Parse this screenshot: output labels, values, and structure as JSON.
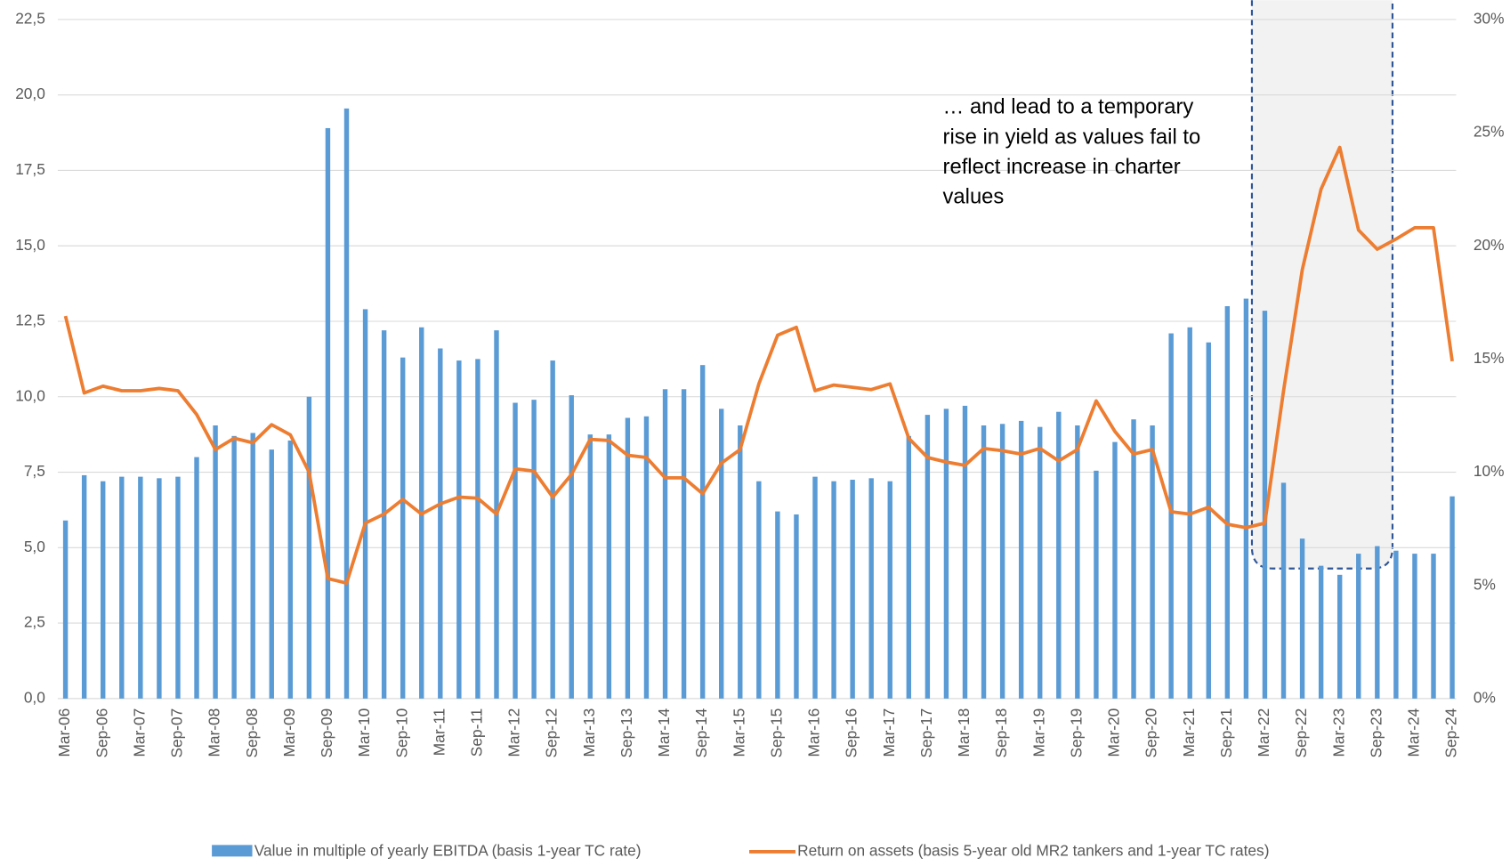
{
  "chart_data": {
    "type": "bar_line",
    "categories": [
      "Mar-06",
      null,
      "Sep-06",
      null,
      "Mar-07",
      null,
      "Sep-07",
      null,
      "Mar-08",
      null,
      "Sep-08",
      null,
      "Mar-09",
      null,
      "Sep-09",
      null,
      "Mar-10",
      null,
      "Sep-10",
      null,
      "Mar-11",
      null,
      "Sep-11",
      null,
      "Mar-12",
      null,
      "Sep-12",
      null,
      "Mar-13",
      null,
      "Sep-13",
      null,
      "Mar-14",
      null,
      "Sep-14",
      null,
      "Mar-15",
      null,
      "Sep-15",
      null,
      "Mar-16",
      null,
      "Sep-16",
      null,
      "Mar-17",
      null,
      "Sep-17",
      null,
      "Mar-18",
      null,
      "Sep-18",
      null,
      "Mar-19",
      null,
      "Sep-19",
      null,
      "Mar-20",
      null,
      "Sep-20",
      null,
      "Mar-21",
      null,
      "Sep-21",
      null,
      "Mar-22",
      null,
      "Sep-22",
      null,
      "Mar-23",
      null,
      "Sep-23",
      null,
      "Mar-24",
      null,
      "Sep-24"
    ],
    "series": [
      {
        "name": "Value in multiple of yearly EBITDA (basis 1-year TC rate)",
        "type": "bar",
        "color": "#5b9bd5",
        "values": [
          5.9,
          7.4,
          7.2,
          7.35,
          7.35,
          7.3,
          7.35,
          8.0,
          9.05,
          8.7,
          8.8,
          8.25,
          8.55,
          10.0,
          18.9,
          19.55,
          12.9,
          12.2,
          11.3,
          12.3,
          11.6,
          11.2,
          11.25,
          12.2,
          9.8,
          9.9,
          11.2,
          10.05,
          8.75,
          8.75,
          9.3,
          9.35,
          10.25,
          10.25,
          11.05,
          9.6,
          9.05,
          7.2,
          6.2,
          6.1,
          7.35,
          7.2,
          7.25,
          7.3,
          7.2,
          8.7,
          9.4,
          9.6,
          9.7,
          9.05,
          9.1,
          9.2,
          9.0,
          9.5,
          9.05,
          7.55,
          8.5,
          9.25,
          9.05,
          12.1,
          12.3,
          11.8,
          13.0,
          13.25,
          12.85,
          7.15,
          5.3,
          4.4,
          4.1,
          4.8,
          5.05,
          4.9,
          4.8,
          4.8,
          6.7
        ]
      },
      {
        "name": "Return on assets (basis 5-year old MR2 tankers and 1-year TC rates)",
        "type": "line",
        "axis": "y2",
        "color": "#ed7d31",
        "values": [
          16.9,
          13.5,
          13.8,
          13.6,
          13.6,
          13.7,
          13.6,
          12.55,
          11.0,
          11.5,
          11.3,
          12.1,
          11.65,
          10.0,
          5.3,
          5.1,
          7.75,
          8.15,
          8.8,
          8.15,
          8.6,
          8.9,
          8.85,
          8.15,
          10.15,
          10.05,
          8.9,
          9.9,
          11.45,
          11.4,
          10.75,
          10.65,
          9.75,
          9.75,
          9.05,
          10.4,
          11.0,
          13.9,
          16.05,
          16.4,
          13.6,
          13.85,
          13.75,
          13.65,
          13.9,
          11.5,
          10.65,
          10.45,
          10.3,
          11.05,
          10.95,
          10.8,
          11.05,
          10.5,
          11.0,
          13.15,
          11.8,
          10.8,
          11.0,
          8.25,
          8.15,
          8.45,
          7.7,
          7.55,
          7.75,
          13.6,
          18.95,
          22.5,
          24.35,
          20.7,
          19.85,
          20.3,
          20.8,
          20.8,
          14.9
        ]
      }
    ],
    "ylim": [
      0,
      22.5
    ],
    "yticks": [
      {
        "value": 0,
        "label": "0,0"
      },
      {
        "value": 2.5,
        "label": "2,5"
      },
      {
        "value": 5,
        "label": "5,0"
      },
      {
        "value": 7.5,
        "label": "7,5"
      },
      {
        "value": 10,
        "label": "10,0"
      },
      {
        "value": 12.5,
        "label": "12,5"
      },
      {
        "value": 15,
        "label": "15,0"
      },
      {
        "value": 17.5,
        "label": "17,5"
      },
      {
        "value": 20,
        "label": "20,0"
      },
      {
        "value": 22.5,
        "label": "22,5"
      }
    ],
    "y2lim": [
      0,
      30
    ],
    "y2ticks": [
      {
        "value": 0,
        "label": "0%"
      },
      {
        "value": 5,
        "label": "5%"
      },
      {
        "value": 10,
        "label": "10%"
      },
      {
        "value": 15,
        "label": "15%"
      },
      {
        "value": 20,
        "label": "20%"
      },
      {
        "value": 25,
        "label": "25%"
      },
      {
        "value": 30,
        "label": "30%"
      }
    ],
    "grid": true,
    "annotation": [
      "… and lead to a temporary",
      "rise in yield as values fail to",
      "reflect increase in charter",
      "values"
    ]
  }
}
